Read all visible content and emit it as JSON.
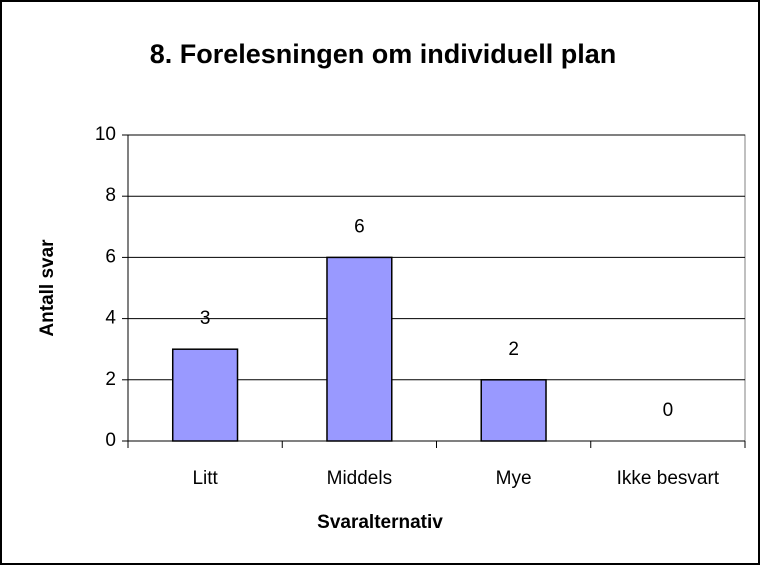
{
  "chart_data": {
    "type": "bar",
    "title": "8. Forelesningen om individuell plan",
    "x_label": "Svaralternativ",
    "y_label": "Antall svar",
    "categories": [
      "Litt",
      "Middels",
      "Mye",
      "Ikke besvart"
    ],
    "values": [
      3,
      6,
      2,
      0
    ],
    "color": "#9999ff",
    "ylim": [
      0,
      10
    ],
    "yticks": [
      0,
      2,
      4,
      6,
      8,
      10
    ],
    "grid": true,
    "data_labels": true
  }
}
